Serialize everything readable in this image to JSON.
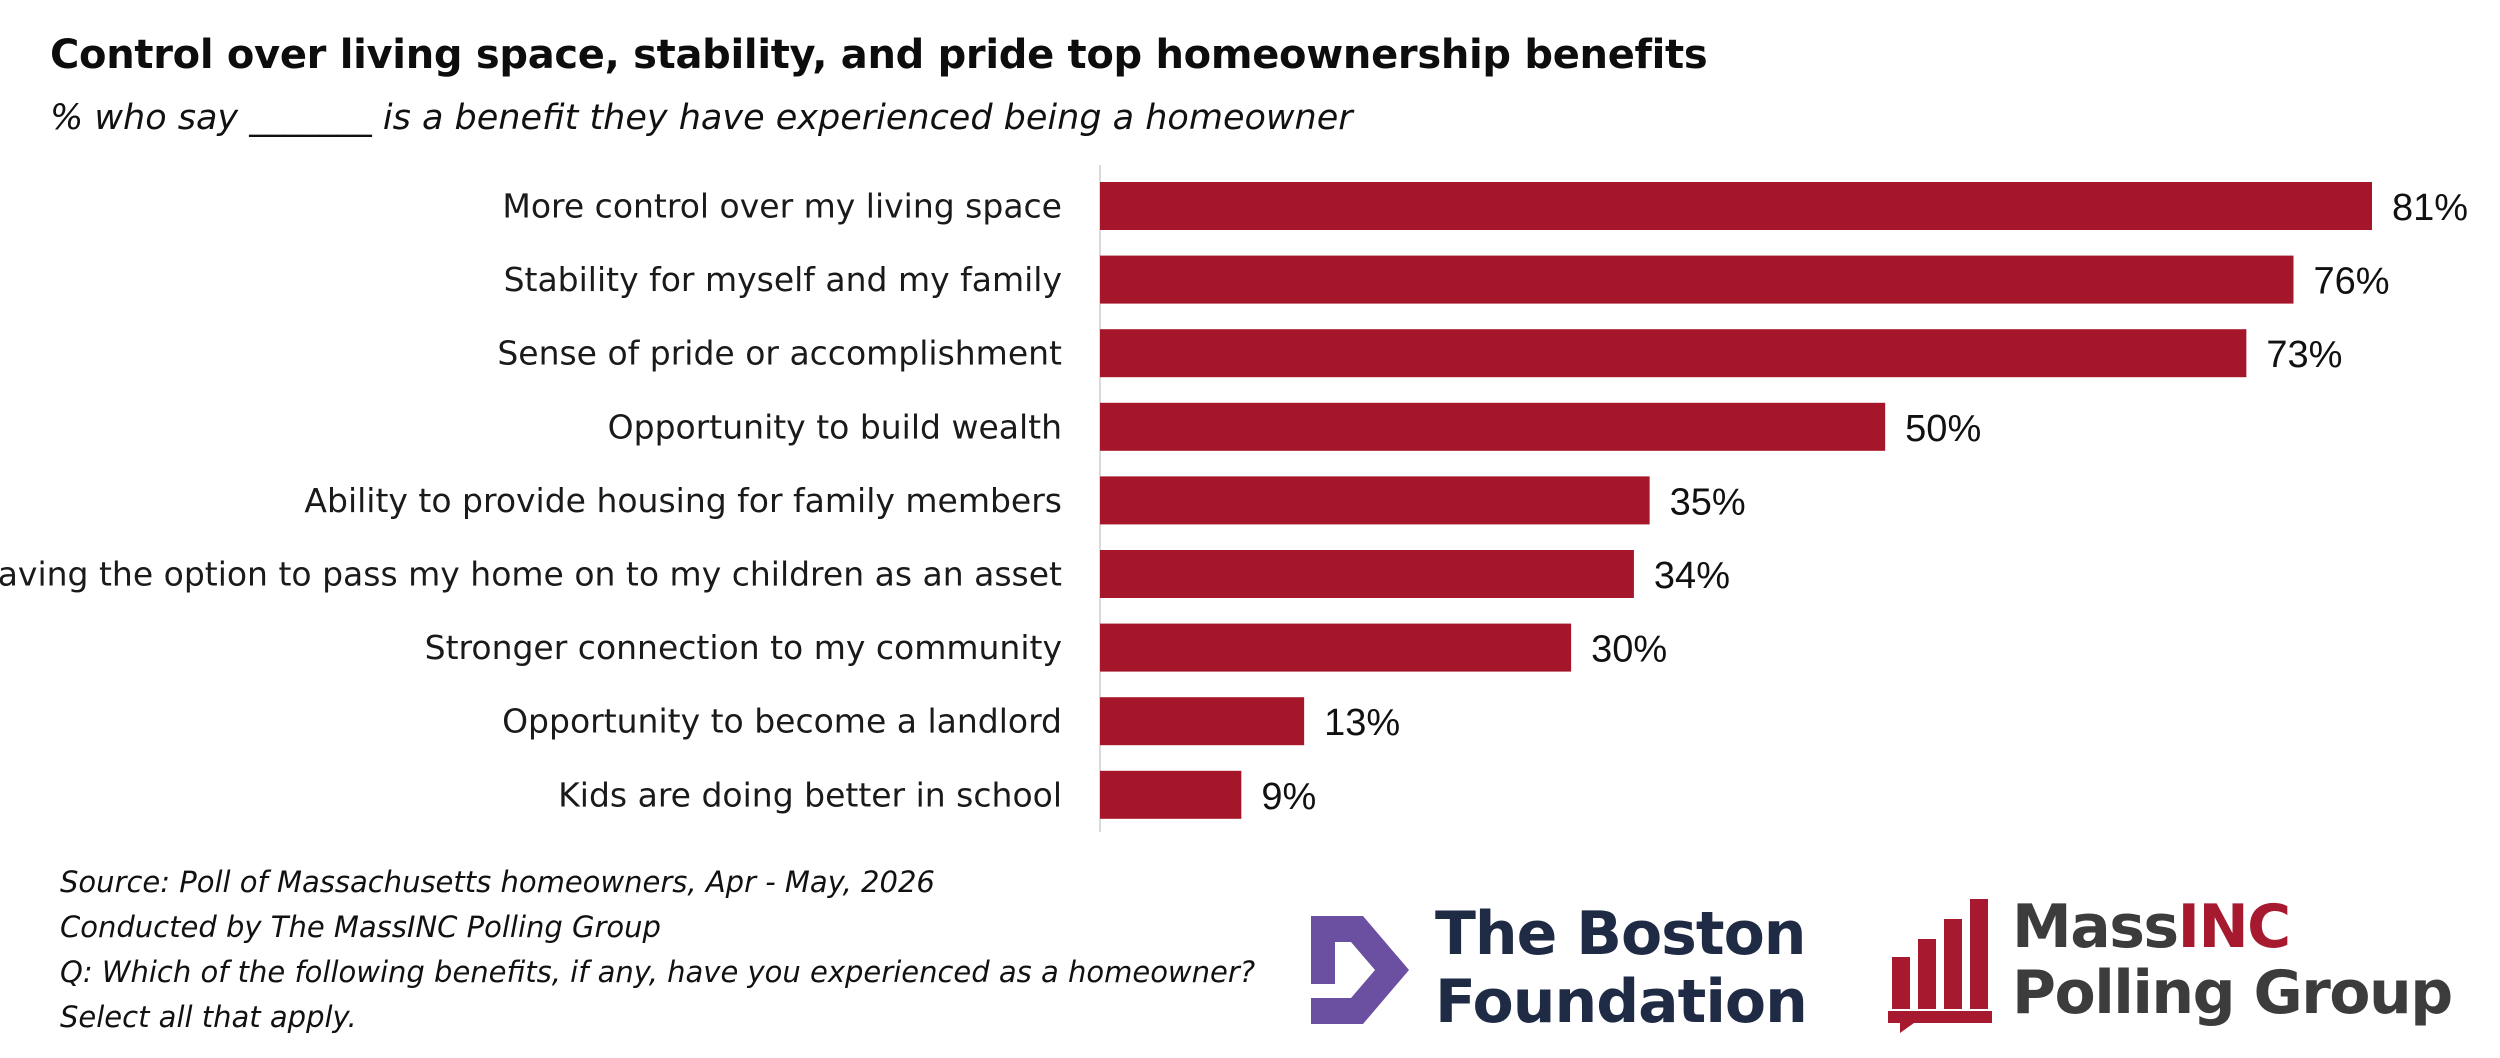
{
  "chart_data": {
    "type": "bar",
    "orientation": "horizontal",
    "title": "Control over living space, stability, and pride top homeownership benefits",
    "subtitle": "% who say _______ is a benefit they have experienced being a homeowner",
    "categories": [
      "More control over my living space",
      "Stability for myself and my family",
      "Sense of pride or accomplishment",
      "Opportunity to build wealth",
      "Ability to provide housing for family members",
      "Having the option to pass my home on to my children as an asset",
      "Stronger connection to my community",
      "Opportunity to become a landlord",
      "Kids are doing better in school"
    ],
    "values": [
      81,
      76,
      73,
      50,
      35,
      34,
      30,
      13,
      9
    ],
    "value_labels": [
      "81%",
      "76%",
      "73%",
      "50%",
      "35%",
      "34%",
      "30%",
      "13%",
      "9%"
    ],
    "xlim": [
      0,
      81
    ],
    "grid": false,
    "bar_color": "#a6162a"
  },
  "source": {
    "lines": [
      "Source: Poll of Massachusetts homeowners, Apr - May, 2026",
      "Conducted by The MassINC Polling Group",
      "Q: Which of the following benefits, if any, have you experienced as a homeowner?",
      "Select all that apply."
    ]
  },
  "logos": {
    "boston_foundation": {
      "line1": "The Boston",
      "line2": "Foundation",
      "mark_color": "#6b4fa0",
      "icon": "boston-foundation-mark-icon"
    },
    "massinc": {
      "name_part1": "Mass",
      "name_part2": "INC",
      "line2": "Polling Group",
      "accent_color": "#a6192e",
      "icon": "massinc-bars-mark-icon"
    }
  }
}
